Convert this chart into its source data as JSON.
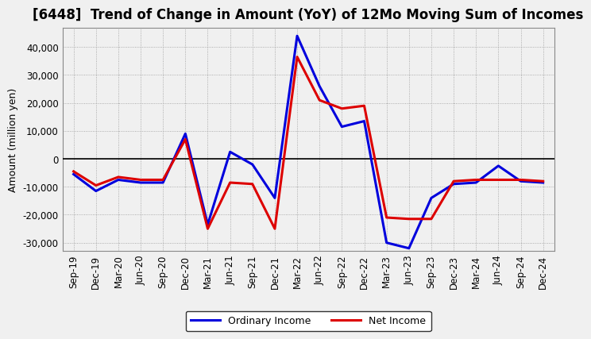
{
  "title": "[6448]  Trend of Change in Amount (YoY) of 12Mo Moving Sum of Incomes",
  "ylabel": "Amount (million yen)",
  "x_labels": [
    "Sep-19",
    "Dec-19",
    "Mar-20",
    "Jun-20",
    "Sep-20",
    "Dec-20",
    "Mar-21",
    "Jun-21",
    "Sep-21",
    "Dec-21",
    "Mar-22",
    "Jun-22",
    "Sep-22",
    "Dec-22",
    "Mar-23",
    "Jun-23",
    "Sep-23",
    "Dec-23",
    "Mar-24",
    "Jun-24",
    "Sep-24",
    "Dec-24"
  ],
  "ordinary_income": [
    -5500,
    -11500,
    -7500,
    -8500,
    -8500,
    9000,
    -23500,
    2500,
    -2000,
    -14000,
    44000,
    26000,
    11500,
    13500,
    -30000,
    -32000,
    -14000,
    -9000,
    -8500,
    -2500,
    -8000,
    -8500
  ],
  "net_income": [
    -4500,
    -9500,
    -6500,
    -7500,
    -7500,
    7000,
    -25000,
    -8500,
    -9000,
    -25000,
    36500,
    21000,
    18000,
    19000,
    -21000,
    -21500,
    -21500,
    -8000,
    -7500,
    -7500,
    -7500,
    -8000
  ],
  "ordinary_color": "#0000dd",
  "net_color": "#dd0000",
  "background_color": "#f0f0f0",
  "plot_bg_color": "#f0f0f0",
  "grid_color": "#999999",
  "ylim": [
    -33000,
    47000
  ],
  "yticks": [
    -30000,
    -20000,
    -10000,
    0,
    10000,
    20000,
    30000,
    40000
  ],
  "legend_labels": [
    "Ordinary Income",
    "Net Income"
  ],
  "title_fontsize": 12,
  "axis_fontsize": 9,
  "tick_fontsize": 8.5,
  "line_width": 2.2
}
